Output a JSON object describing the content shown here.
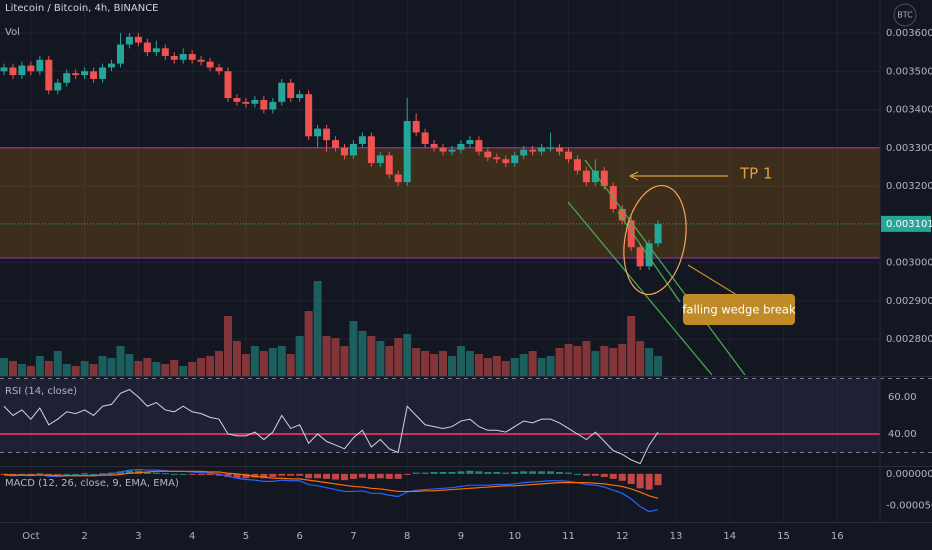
{
  "chart_data": {
    "type": "candlestick",
    "title": "Litecoin / Bitcoin, 4h, BINANCE",
    "currency": "BTC",
    "volume_label": "Vol",
    "open": [
      0.0035,
      0.00351,
      0.00349,
      0.003515,
      0.0035,
      0.00353,
      0.00345,
      0.00347,
      0.003495,
      0.00349,
      0.0035,
      0.00348,
      0.00351,
      0.00352,
      0.00357,
      0.00359,
      0.003575,
      0.00355,
      0.00356,
      0.00354,
      0.00353,
      0.003545,
      0.00353,
      0.003525,
      0.00351,
      0.0035,
      0.00343,
      0.00342,
      0.003415,
      0.003425,
      0.0034,
      0.00342,
      0.00347,
      0.00343,
      0.00344,
      0.00333,
      0.00335,
      0.00332,
      0.0033,
      0.00328,
      0.00331,
      0.00333,
      0.00326,
      0.00328,
      0.00323,
      0.00321,
      0.00337,
      0.00334,
      0.00331,
      0.0033,
      0.00329,
      0.003295,
      0.00331,
      0.00332,
      0.00329,
      0.003275,
      0.00327,
      0.00326,
      0.00328,
      0.003295,
      0.00329,
      0.0033,
      0.0033,
      0.00329,
      0.00327,
      0.00324,
      0.00321,
      0.00324,
      0.0032,
      0.00314,
      0.00311,
      0.00304,
      0.00299,
      0.00305
    ],
    "high": [
      0.00352,
      0.00352,
      0.003525,
      0.003525,
      0.00354,
      0.00354,
      0.00348,
      0.003505,
      0.003505,
      0.00351,
      0.00351,
      0.00352,
      0.00353,
      0.0036,
      0.0036,
      0.0036,
      0.003585,
      0.00358,
      0.00357,
      0.00355,
      0.00356,
      0.003555,
      0.00354,
      0.003535,
      0.00352,
      0.00351,
      0.00344,
      0.00343,
      0.003435,
      0.003435,
      0.00343,
      0.00348,
      0.00348,
      0.00345,
      0.00345,
      0.00336,
      0.00336,
      0.00333,
      0.00331,
      0.00332,
      0.00334,
      0.00334,
      0.00329,
      0.00329,
      0.00324,
      0.00343,
      0.00339,
      0.00335,
      0.00332,
      0.00331,
      0.003305,
      0.00332,
      0.00333,
      0.00333,
      0.0033,
      0.003285,
      0.00328,
      0.00329,
      0.003305,
      0.003305,
      0.00331,
      0.00334,
      0.00331,
      0.0033,
      0.00328,
      0.00325,
      0.00327,
      0.00325,
      0.00321,
      0.00315,
      0.00312,
      0.00305,
      0.00306,
      0.00311
    ],
    "low": [
      0.00349,
      0.00348,
      0.00348,
      0.00349,
      0.00349,
      0.00344,
      0.00344,
      0.00346,
      0.00348,
      0.00348,
      0.00347,
      0.00347,
      0.0035,
      0.00351,
      0.00356,
      0.003565,
      0.00354,
      0.00354,
      0.00353,
      0.00352,
      0.00352,
      0.00352,
      0.003515,
      0.0035,
      0.00349,
      0.00342,
      0.00341,
      0.003405,
      0.003405,
      0.00339,
      0.00339,
      0.00341,
      0.00342,
      0.00342,
      0.00332,
      0.0033,
      0.00329,
      0.00329,
      0.00327,
      0.00327,
      0.0033,
      0.00325,
      0.00325,
      0.00322,
      0.0032,
      0.0032,
      0.00333,
      0.0033,
      0.00329,
      0.00328,
      0.00328,
      0.003285,
      0.0033,
      0.00328,
      0.003265,
      0.00326,
      0.00325,
      0.00325,
      0.00327,
      0.00328,
      0.00328,
      0.00329,
      0.00328,
      0.00326,
      0.00323,
      0.0032,
      0.0032,
      0.00319,
      0.00313,
      0.0031,
      0.00303,
      0.00298,
      0.00298,
      0.00304
    ],
    "close": [
      0.00351,
      0.00349,
      0.003515,
      0.0035,
      0.00353,
      0.00345,
      0.00347,
      0.003495,
      0.00349,
      0.0035,
      0.00348,
      0.00351,
      0.00352,
      0.00357,
      0.00359,
      0.003575,
      0.00355,
      0.00356,
      0.00354,
      0.00353,
      0.003545,
      0.00353,
      0.003525,
      0.00351,
      0.0035,
      0.00343,
      0.00342,
      0.003415,
      0.003425,
      0.0034,
      0.00342,
      0.00347,
      0.00343,
      0.00344,
      0.00333,
      0.00335,
      0.00332,
      0.0033,
      0.00328,
      0.00331,
      0.00333,
      0.00326,
      0.00328,
      0.00323,
      0.00321,
      0.00337,
      0.00334,
      0.00331,
      0.0033,
      0.00329,
      0.003295,
      0.00331,
      0.00332,
      0.00329,
      0.003275,
      0.00327,
      0.00326,
      0.00328,
      0.003295,
      0.00329,
      0.0033,
      0.0033,
      0.00329,
      0.00327,
      0.00324,
      0.00321,
      0.00324,
      0.0032,
      0.00314,
      0.00311,
      0.00304,
      0.00299,
      0.00305,
      0.003101
    ],
    "volume": [
      18,
      15,
      12,
      10,
      20,
      15,
      25,
      12,
      10,
      15,
      12,
      20,
      18,
      30,
      22,
      15,
      18,
      14,
      12,
      16,
      10,
      14,
      18,
      20,
      25,
      60,
      35,
      22,
      30,
      25,
      28,
      30,
      22,
      40,
      65,
      95,
      40,
      38,
      30,
      55,
      45,
      40,
      35,
      30,
      38,
      42,
      28,
      25,
      22,
      25,
      20,
      30,
      25,
      22,
      18,
      20,
      15,
      18,
      22,
      25,
      18,
      20,
      28,
      32,
      30,
      35,
      25,
      30,
      28,
      32,
      60,
      35,
      28,
      20
    ],
    "ylim": [
      0.0027033,
      0.0036863
    ],
    "yticks": [
      {
        "value": 0.0036,
        "label": "0.003600"
      },
      {
        "value": 0.0035,
        "label": "0.003500"
      },
      {
        "value": 0.0034,
        "label": "0.003400"
      },
      {
        "value": 0.0033,
        "label": "0.003300"
      },
      {
        "value": 0.0032,
        "label": "0.003200"
      },
      {
        "value": 0.003,
        "label": "0.003000"
      },
      {
        "value": 0.0029,
        "label": "0.002900"
      },
      {
        "value": 0.0028,
        "label": "0.002800"
      }
    ],
    "last_price": {
      "value": 0.003101,
      "label": "0.003101"
    },
    "zone": [
      0.0033,
      0.003012
    ],
    "x_labels": [
      "Oct",
      "2",
      "3",
      "4",
      "5",
      "6",
      "7",
      "8",
      "9",
      "10",
      "11",
      "12",
      "13",
      "14",
      "15",
      "16"
    ],
    "colors": {
      "up": "#26a69a",
      "down": "#ef5350",
      "zone": "#9c27b0",
      "rsi": "#d1d4dc",
      "rsi_level": "#ff3b5c",
      "macd": "#2962ff",
      "signal": "#ff6d00"
    },
    "annotations": [
      "TP 1",
      "falling wedge break"
    ],
    "rsi": {
      "title": "RSI (14, close)",
      "values": [
        55,
        50,
        53,
        48,
        54,
        45,
        48,
        52,
        51,
        53,
        50,
        55,
        56,
        62,
        64,
        60,
        55,
        57,
        53,
        52,
        55,
        52,
        51,
        49,
        48,
        40,
        39,
        39,
        41,
        37,
        41,
        50,
        43,
        45,
        35,
        40,
        36,
        34,
        32,
        38,
        42,
        33,
        37,
        32,
        30,
        55,
        50,
        45,
        44,
        43,
        44,
        47,
        48,
        44,
        42,
        42,
        41,
        44,
        47,
        46,
        48,
        48,
        46,
        43,
        40,
        37,
        41,
        36,
        31,
        29,
        26,
        24,
        34,
        41
      ],
      "ylim": [
        22.7,
        70.8
      ],
      "yticks": [
        {
          "value": 60,
          "label": "60.00"
        },
        {
          "value": 40,
          "label": "40.00"
        }
      ],
      "bands": [
        70,
        30
      ],
      "level": 40
    },
    "macd": {
      "title": "MACD (12, 26, close, 9, EMA, EMA)",
      "macd": [
        -2e-06,
        -3e-06,
        -2e-06,
        -3e-06,
        -1e-06,
        -4e-06,
        -4e-06,
        -3e-06,
        -3e-06,
        -2e-06,
        -3e-06,
        -1e-06,
        0,
        3e-06,
        6e-06,
        7e-06,
        6e-06,
        6e-06,
        5e-06,
        4e-06,
        4e-06,
        3e-06,
        2e-06,
        1e-06,
        0,
        -4e-06,
        -7e-06,
        -9e-06,
        -1e-05,
        -1.2e-05,
        -1.2e-05,
        -1e-05,
        -1.1e-05,
        -1.1e-05,
        -1.7e-05,
        -1.9e-05,
        -2.2e-05,
        -2.5e-05,
        -2.8e-05,
        -2.8e-05,
        -2.7e-05,
        -3.1e-05,
        -3.1e-05,
        -3.4e-05,
        -3.6e-05,
        -2.9e-05,
        -2.6e-05,
        -2.5e-05,
        -2.4e-05,
        -2.3e-05,
        -2.2e-05,
        -2e-05,
        -1.8e-05,
        -1.8e-05,
        -1.8e-05,
        -1.7e-05,
        -1.7e-05,
        -1.6e-05,
        -1.4e-05,
        -1.3e-05,
        -1.2e-05,
        -1.1e-05,
        -1.1e-05,
        -1.2e-05,
        -1.4e-05,
        -1.7e-05,
        -1.8e-05,
        -2.1e-05,
        -2.6e-05,
        -3.1e-05,
        -4e-05,
        -5.2e-05,
        -6e-05,
        -5.7e-05
      ],
      "signal": [
        -1e-06,
        -2e-06,
        -2e-06,
        -2e-06,
        -2e-06,
        -2e-06,
        -3e-06,
        -3e-06,
        -3e-06,
        -3e-06,
        -3e-06,
        -2e-06,
        -2e-06,
        -1e-06,
        1e-06,
        2e-06,
        3e-06,
        4e-06,
        4e-06,
        4e-06,
        4e-06,
        4e-06,
        4e-06,
        3e-06,
        3e-06,
        1e-06,
        0,
        -2e-06,
        -4e-06,
        -5e-06,
        -7e-06,
        -7e-06,
        -8e-06,
        -8e-06,
        -1e-05,
        -1.2e-05,
        -1.4e-05,
        -1.6e-05,
        -1.8e-05,
        -2e-05,
        -2.1e-05,
        -2.3e-05,
        -2.4e-05,
        -2.6e-05,
        -2.8e-05,
        -2.8e-05,
        -2.8e-05,
        -2.7e-05,
        -2.7e-05,
        -2.6e-05,
        -2.5e-05,
        -2.4e-05,
        -2.3e-05,
        -2.2e-05,
        -2.1e-05,
        -2e-05,
        -1.9e-05,
        -1.9e-05,
        -1.8e-05,
        -1.7e-05,
        -1.6e-05,
        -1.5e-05,
        -1.4e-05,
        -1.4e-05,
        -1.4e-05,
        -1.4e-05,
        -1.5e-05,
        -1.6e-05,
        -1.8e-05,
        -2e-05,
        -2.4e-05,
        -2.9e-05,
        -3.5e-05,
        -3.9e-05
      ],
      "ylim": [
        -7.66e-05,
        1.09e-05
      ],
      "yticks": [
        {
          "value": 0,
          "label": "0.000000"
        },
        {
          "value": -5e-05,
          "label": "-0.000050"
        }
      ]
    }
  }
}
